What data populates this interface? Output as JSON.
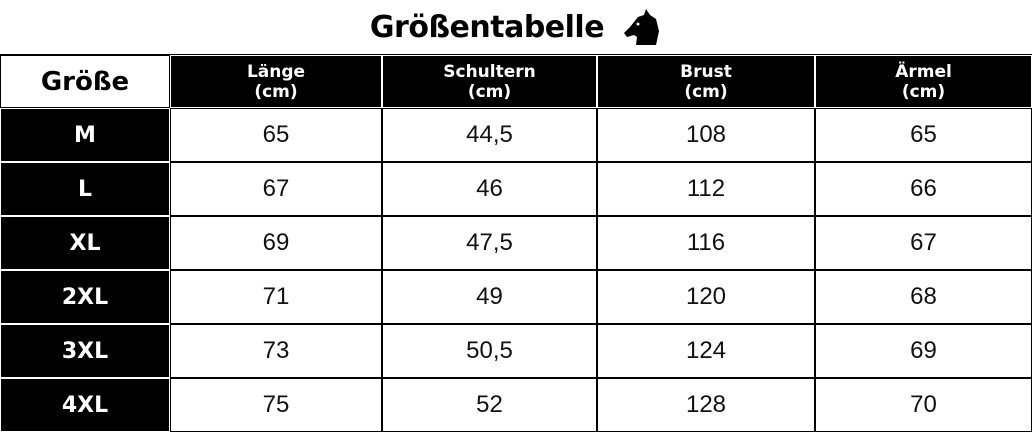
{
  "title": "Größentabelle",
  "table": {
    "header": [
      "Größe",
      "Länge\n(cm)",
      "Schultern\n(cm)",
      "Brust\n(cm)",
      "Ärmel\n(cm)"
    ],
    "rows": [
      [
        "M",
        "65",
        "44,5",
        "108",
        "65"
      ],
      [
        "L",
        "67",
        "46",
        "112",
        "66"
      ],
      [
        "XL",
        "69",
        "47,5",
        "116",
        "67"
      ],
      [
        "2XL",
        "71",
        "49",
        "120",
        "68"
      ],
      [
        "3XL",
        "73",
        "50,5",
        "124",
        "69"
      ],
      [
        "4XL",
        "75",
        "52",
        "128",
        "70"
      ]
    ]
  }
}
